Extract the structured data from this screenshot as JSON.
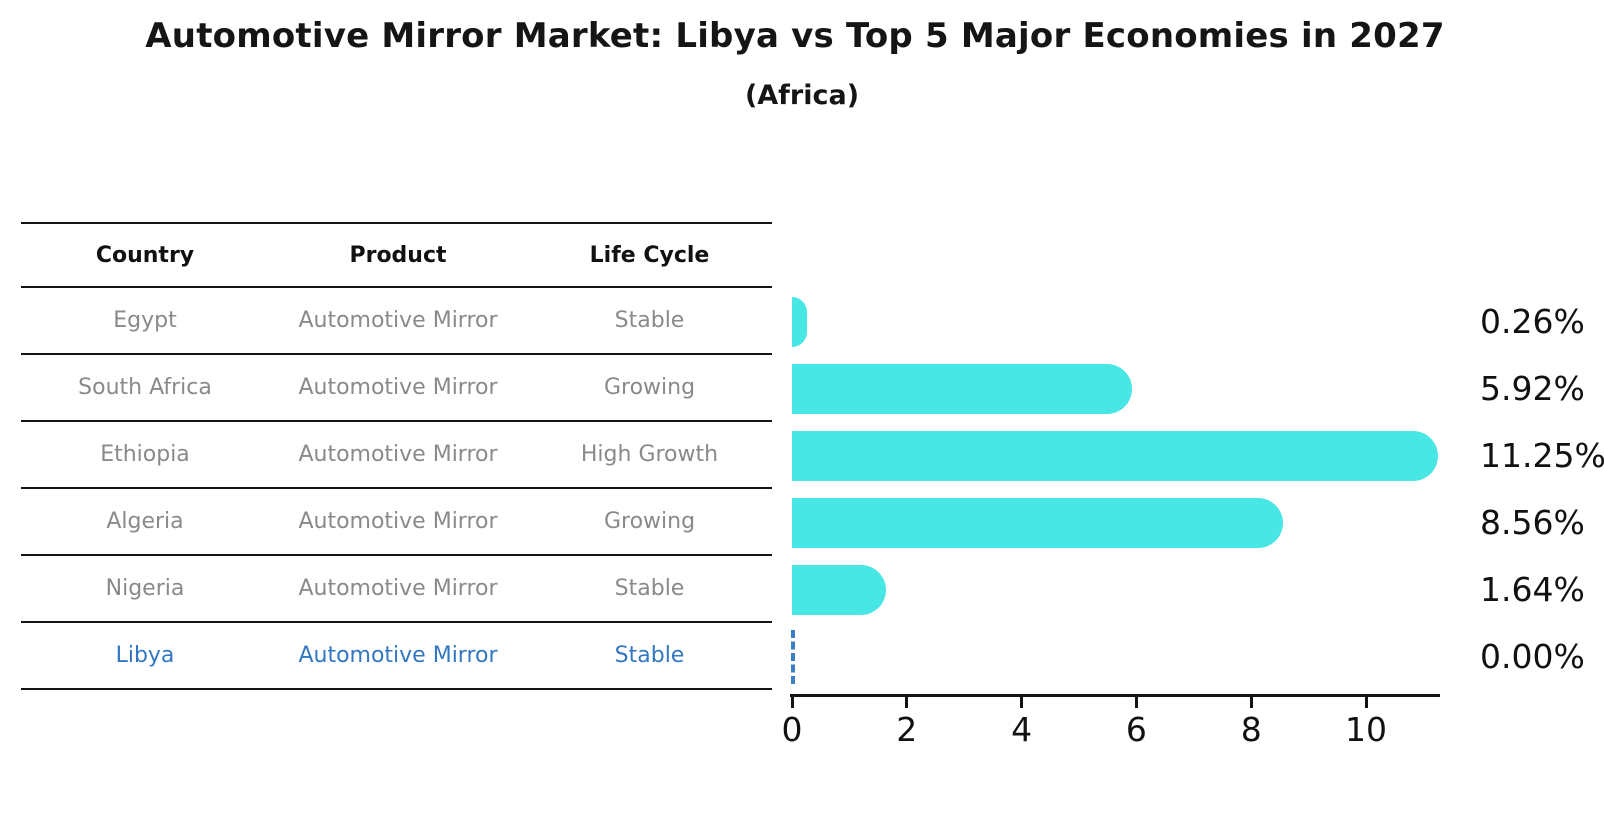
{
  "page": {
    "title": "Automotive Mirror Market: Libya vs Top 5 Major Economies in 2027",
    "subtitle": "(Africa)"
  },
  "table": {
    "headers": [
      "Country",
      "Product",
      "Life Cycle"
    ],
    "rows": [
      {
        "country": "Egypt",
        "product": "Automotive Mirror",
        "life_cycle": "Stable",
        "highlight": false
      },
      {
        "country": "South Africa",
        "product": "Automotive Mirror",
        "life_cycle": "Growing",
        "highlight": false
      },
      {
        "country": "Ethiopia",
        "product": "Automotive Mirror",
        "life_cycle": "High Growth",
        "highlight": false
      },
      {
        "country": "Algeria",
        "product": "Automotive Mirror",
        "life_cycle": "Growing",
        "highlight": false
      },
      {
        "country": "Nigeria",
        "product": "Automotive Mirror",
        "life_cycle": "Stable",
        "highlight": false
      },
      {
        "country": "Libya",
        "product": "Automotive Mirror",
        "life_cycle": "Stable",
        "highlight": true
      }
    ]
  },
  "chart_data": {
    "type": "bar",
    "orientation": "horizontal",
    "title": "Automotive Mirror Market: Libya vs Top 5 Major Economies in 2027",
    "subtitle": "(Africa)",
    "categories": [
      "Egypt",
      "South Africa",
      "Ethiopia",
      "Algeria",
      "Nigeria",
      "Libya"
    ],
    "values": [
      0.26,
      5.92,
      11.25,
      8.56,
      1.64,
      0.0
    ],
    "value_labels": [
      "0.26%",
      "5.92%",
      "11.25%",
      "8.56%",
      "1.64%",
      "0.00%"
    ],
    "xlabel": "",
    "ylabel": "",
    "xticks": [
      0,
      2,
      4,
      6,
      8,
      10
    ],
    "xlim": [
      0,
      11.3
    ],
    "grid": false,
    "legend": false,
    "bar_color": "#48e6e4",
    "highlight_color": "#3b7ec6",
    "highlight_category": "Libya",
    "zero_value_style": "dashed-blue-line"
  }
}
